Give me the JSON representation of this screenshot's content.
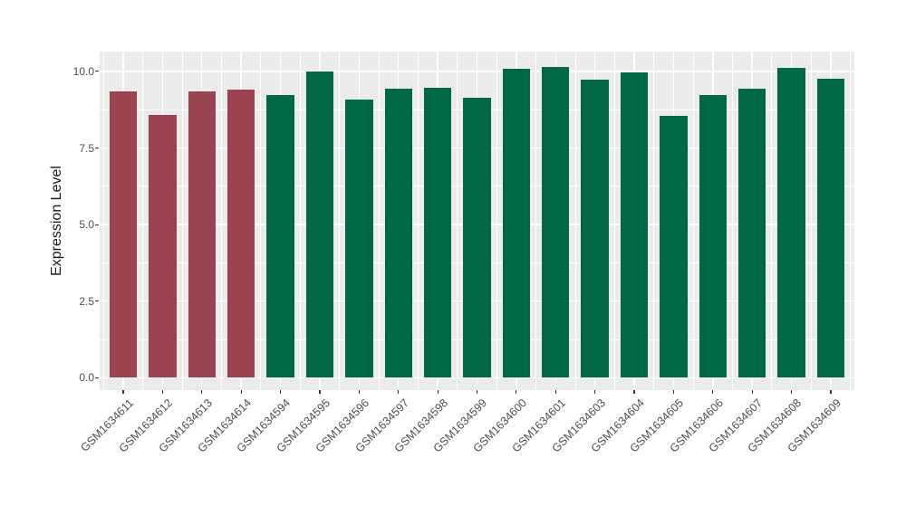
{
  "chart_data": {
    "type": "bar",
    "title": "",
    "xlabel": "",
    "ylabel": "Expression Level",
    "legend": "none",
    "grid": true,
    "panel_bg": "#EBEBEB",
    "grid_color": "#FFFFFF",
    "axis_text_color": "#4D4D4D",
    "ylim": [
      -0.41,
      10.63
    ],
    "y_tick_values": [
      0,
      2.5,
      5,
      7.5,
      10
    ],
    "y_tick_labels": [
      "0.0",
      "2.5",
      "5.0",
      "7.5",
      "10.0"
    ],
    "y_minor_tick_values": [
      1.25,
      3.75,
      6.25,
      8.75
    ],
    "categories": [
      "GSM1634611",
      "GSM1634612",
      "GSM1634613",
      "GSM1634614",
      "GSM1634594",
      "GSM1634595",
      "GSM1634596",
      "GSM1634597",
      "GSM1634598",
      "GSM1634599",
      "GSM1634600",
      "GSM1634601",
      "GSM1634603",
      "GSM1634604",
      "GSM1634605",
      "GSM1634606",
      "GSM1634607",
      "GSM1634608",
      "GSM1634609"
    ],
    "values": [
      9.35,
      8.58,
      9.35,
      9.41,
      9.24,
      10.0,
      9.08,
      9.43,
      9.48,
      9.13,
      10.1,
      10.15,
      9.73,
      9.97,
      8.54,
      9.23,
      9.43,
      10.12,
      9.77
    ],
    "groups": [
      "maroon",
      "maroon",
      "maroon",
      "maroon",
      "green",
      "green",
      "green",
      "green",
      "green",
      "green",
      "green",
      "green",
      "green",
      "green",
      "green",
      "green",
      "green",
      "green",
      "green"
    ],
    "group_colors": {
      "maroon": "#9B4451",
      "green": "#006847"
    }
  }
}
